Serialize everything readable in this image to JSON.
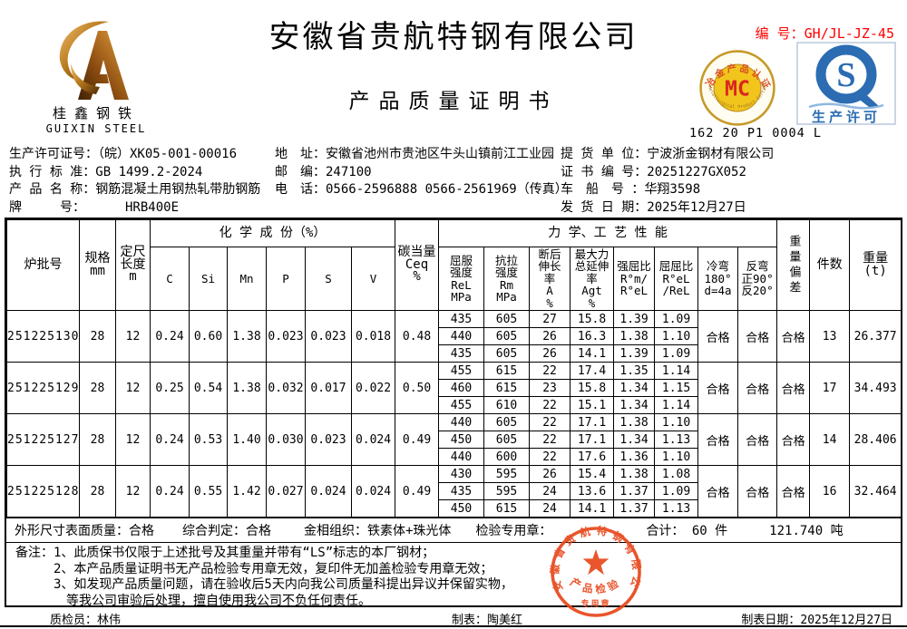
{
  "header": {
    "title": "安徽省贵航特钢有限公司",
    "subtitle": "产品质量证明书",
    "doc_no": "编 号：GH/JL-JZ-45"
  },
  "logo": {
    "cn": "桂鑫钢铁",
    "en": "GUIXIN STEEL"
  },
  "badges": {
    "mc": {
      "letters": "MC",
      "top_text": "冶金产品认证",
      "bottom_text": "Metallurgical Product Certification",
      "code": "162 20 P1 0004 L"
    },
    "qs": {
      "s_letter": "S",
      "label": "生产许可"
    }
  },
  "info": {
    "left": [
      {
        "label": "生产许可证号：",
        "value": "（皖）XK05-001-00016"
      },
      {
        "label": "执 行 标 准：",
        "value": "GB 1499.2-2024"
      },
      {
        "label": "产 品 名 称：",
        "value": "钢筋混凝土用钢热轧带肋钢筋"
      },
      {
        "label": "牌　　　号：",
        "value": "HRB400E"
      }
    ],
    "middle": [
      {
        "label": "地　址：",
        "value": "安徽省池州市贵池区牛头山镇前江工业园"
      },
      {
        "label": "邮　编：",
        "value": "247100"
      },
      {
        "label": "电　话：",
        "value": "0566-2596888  0566-2561969（传真）"
      }
    ],
    "right": [
      {
        "label": "提 货 单 位：",
        "value": "宁波浙金钢材有限公司"
      },
      {
        "label": "证 书 编 号：",
        "value": "20251227GX052"
      },
      {
        "label": "车　船　号 ：",
        "value": "华翔3598"
      },
      {
        "label": "发 货 日 期：",
        "value": "2025年12月27日"
      }
    ]
  },
  "table": {
    "group_headers": {
      "chemical": "化 学 成 份（%）",
      "mechanical": "力 学、工 艺 性 能"
    },
    "columns": {
      "heat": "炉批号",
      "spec": "规格\nmm",
      "length": "定尺\n长度\nm",
      "chem": [
        "C",
        "Si",
        "Mn",
        "P",
        "S",
        "V"
      ],
      "ceq": "碳当量\nCeq\n%",
      "mech": [
        "屈服\n强度\nReL\nMPa",
        "抗拉\n强度\nRm\nMPa",
        "断后\n伸长\n率\nA\n%",
        "最大力\n总延伸\n率\nAgt\n%",
        "强屈比\nR°m/\nR°eL",
        "屈屈比\nR°eL\n/ReL",
        "冷弯\n180°\nd=4a",
        "反弯\n正90°\n反20°"
      ],
      "weight_dev": "重量偏差",
      "pieces": "件数",
      "weight": "重量\n(t)"
    },
    "batches": [
      {
        "heat_no": "251225130",
        "spec": "28",
        "length": "12",
        "chem": [
          "0.24",
          "0.60",
          "1.38",
          "0.023",
          "0.023",
          "0.018"
        ],
        "ceq": "0.48",
        "mech": [
          [
            "435",
            "605",
            "27",
            "15.8",
            "1.39",
            "1.09"
          ],
          [
            "440",
            "605",
            "26",
            "16.3",
            "1.38",
            "1.10"
          ],
          [
            "435",
            "605",
            "26",
            "14.1",
            "1.39",
            "1.09"
          ]
        ],
        "cold_bend": "合格",
        "reverse_bend": "合格",
        "weight_dev": "合格",
        "pieces": "13",
        "weight": "26.377"
      },
      {
        "heat_no": "251225129",
        "spec": "28",
        "length": "12",
        "chem": [
          "0.25",
          "0.54",
          "1.38",
          "0.032",
          "0.017",
          "0.022"
        ],
        "ceq": "0.50",
        "mech": [
          [
            "455",
            "615",
            "22",
            "17.4",
            "1.35",
            "1.14"
          ],
          [
            "460",
            "615",
            "23",
            "15.8",
            "1.34",
            "1.15"
          ],
          [
            "455",
            "610",
            "22",
            "15.1",
            "1.34",
            "1.14"
          ]
        ],
        "cold_bend": "合格",
        "reverse_bend": "合格",
        "weight_dev": "合格",
        "pieces": "17",
        "weight": "34.493"
      },
      {
        "heat_no": "251225127",
        "spec": "28",
        "length": "12",
        "chem": [
          "0.24",
          "0.53",
          "1.40",
          "0.030",
          "0.023",
          "0.024"
        ],
        "ceq": "0.49",
        "mech": [
          [
            "440",
            "605",
            "22",
            "17.1",
            "1.38",
            "1.10"
          ],
          [
            "450",
            "605",
            "22",
            "17.1",
            "1.34",
            "1.13"
          ],
          [
            "440",
            "600",
            "22",
            "17.6",
            "1.36",
            "1.10"
          ]
        ],
        "cold_bend": "合格",
        "reverse_bend": "合格",
        "weight_dev": "合格",
        "pieces": "14",
        "weight": "28.406"
      },
      {
        "heat_no": "251225128",
        "spec": "28",
        "length": "12",
        "chem": [
          "0.24",
          "0.55",
          "1.42",
          "0.027",
          "0.024",
          "0.024"
        ],
        "ceq": "0.49",
        "mech": [
          [
            "430",
            "595",
            "26",
            "15.4",
            "1.38",
            "1.08"
          ],
          [
            "435",
            "595",
            "24",
            "13.6",
            "1.37",
            "1.09"
          ],
          [
            "450",
            "615",
            "24",
            "14.1",
            "1.37",
            "1.13"
          ]
        ],
        "cold_bend": "合格",
        "reverse_bend": "合格",
        "weight_dev": "合格",
        "pieces": "16",
        "weight": "32.464"
      }
    ],
    "summary": {
      "dim_quality": "外形尺寸表面质量：合格",
      "overall": "综合判定：合格",
      "metallographic": "金相组织：铁素体+珠光体",
      "stamp_label": "检验专用章：",
      "total": "合计：  60  件",
      "total_weight": "121.740   吨"
    }
  },
  "notes": {
    "label": "备注：",
    "lines": [
      "1、此质保书仅限于上述批号及其重量并带有“LS”标志的本厂钢材；",
      "2、本产品质量证明书无产品检验专用章无效，复印件无加盖检验专用章无效；",
      "3、如发现产品质量问题，请在验收后5天内向我公司质量科提出异议并保留实物，",
      "等我公司审验后处理，擅自使用我公司不负任何责任。"
    ]
  },
  "stamp": {
    "company": "安徽省贵航特钢有限公司",
    "line1": "产品检验",
    "line2": "专用章"
  },
  "footer": {
    "qc": "质检员：林伟",
    "prepared_by": "制表：陶美红",
    "date": "制表日期：2025年12月27日"
  },
  "colors": {
    "accent_red": "#ff0000",
    "seal_red": "#e8491d",
    "qs_blue": "#2b6cb3",
    "mc_gold": "#c79a28",
    "mc_yellow": "#f2c51d",
    "mc_red": "#d8281e"
  }
}
